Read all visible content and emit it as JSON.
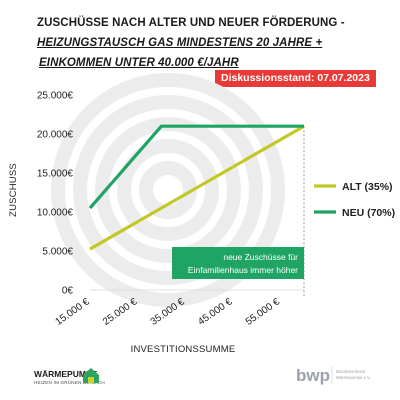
{
  "header": {
    "title_line1": "ZUSCHÜSSE NACH ALTER UND NEUER FÖRDERUNG -",
    "title_line2": "HEIZUNGSTAUSCH GAS MINDESTENS 20 JAHRE +",
    "title_line3": "EINKOMMEN UNTER 40.000 €/JAHR",
    "discussion_badge": "Diskussionsstand: 07.07.2023"
  },
  "colors": {
    "alt": "#c2c826",
    "neu": "#1fa463",
    "badge": "#e83a36",
    "annotation_bg": "#1fa463",
    "spiral": "#ececec"
  },
  "chart_data": {
    "type": "line",
    "xlabel": "INVESTITIONSSUMME",
    "ylabel": "ZUSCHUSS",
    "x_tick_labels": [
      "15.000 €",
      "25.000 €",
      "35.000 €",
      "45.000 €",
      "55.000 €"
    ],
    "y_tick_labels": [
      "0€",
      "5.000€",
      "10.000€",
      "15.000€",
      "20.000€",
      "25.000€"
    ],
    "x_ticks": [
      15000,
      25000,
      35000,
      45000,
      55000
    ],
    "y_ticks": [
      0,
      5000,
      10000,
      15000,
      20000,
      25000
    ],
    "xlim": [
      15000,
      60000
    ],
    "ylim": [
      0,
      25000
    ],
    "grid": false,
    "legend_position": "right",
    "series": [
      {
        "name": "ALT (35%)",
        "color": "#c2c826",
        "points": [
          [
            15000,
            5250
          ],
          [
            60000,
            21000
          ]
        ]
      },
      {
        "name": "NEU (70%)",
        "color": "#1fa463",
        "points": [
          [
            15000,
            10500
          ],
          [
            30000,
            21000
          ],
          [
            60000,
            21000
          ]
        ]
      }
    ],
    "annotation": {
      "line1": "neue Zuschüsse für",
      "line2": "Einfamilienhaus immer höher",
      "x": 60000
    }
  },
  "logos": {
    "waermepumpe_title": "WÄRMEPUMPE",
    "waermepumpe_subtitle": "HEIZEN IM GRÜNEN BEREICH",
    "bwp_text": "bwp",
    "bwp_sub1": "Bundesverband",
    "bwp_sub2": "Wärmepumpe e.V."
  }
}
